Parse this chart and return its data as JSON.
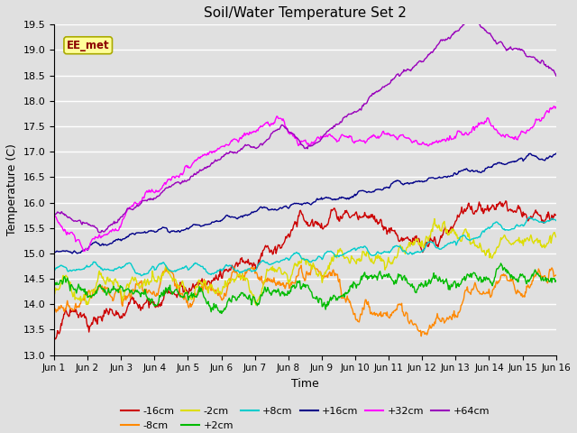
{
  "title": "Soil/Water Temperature Set 2",
  "xlabel": "Time",
  "ylabel": "Temperature (C)",
  "ylim": [
    13.0,
    19.5
  ],
  "xlim": [
    0,
    15
  ],
  "xtick_labels": [
    "Jun 1",
    "Jun 2",
    "Jun 3",
    "Jun 4",
    "Jun 5",
    "Jun 6",
    "Jun 7",
    "Jun 8",
    "Jun 9",
    "Jun 10",
    "Jun 11",
    "Jun 12",
    "Jun 13",
    "Jun 14",
    "Jun 15",
    "Jun 16"
  ],
  "ytick_values": [
    13.0,
    13.5,
    14.0,
    14.5,
    15.0,
    15.5,
    16.0,
    16.5,
    17.0,
    17.5,
    18.0,
    18.5,
    19.0,
    19.5
  ],
  "annotation_text": "EE_met",
  "annotation_color": "#8B0000",
  "annotation_bg": "#FFFF99",
  "annotation_border": "#AAAA00",
  "background_color": "#E0E0E0",
  "grid_color": "#FFFFFF",
  "series": [
    {
      "label": "-16cm",
      "color": "#CC0000"
    },
    {
      "label": "-8cm",
      "color": "#FF8800"
    },
    {
      "label": "-2cm",
      "color": "#DDDD00"
    },
    {
      "label": "+2cm",
      "color": "#00BB00"
    },
    {
      "label": "+8cm",
      "color": "#00CCCC"
    },
    {
      "label": "+16cm",
      "color": "#000088"
    },
    {
      "label": "+32cm",
      "color": "#FF00FF"
    },
    {
      "label": "+64cm",
      "color": "#9900BB"
    }
  ]
}
